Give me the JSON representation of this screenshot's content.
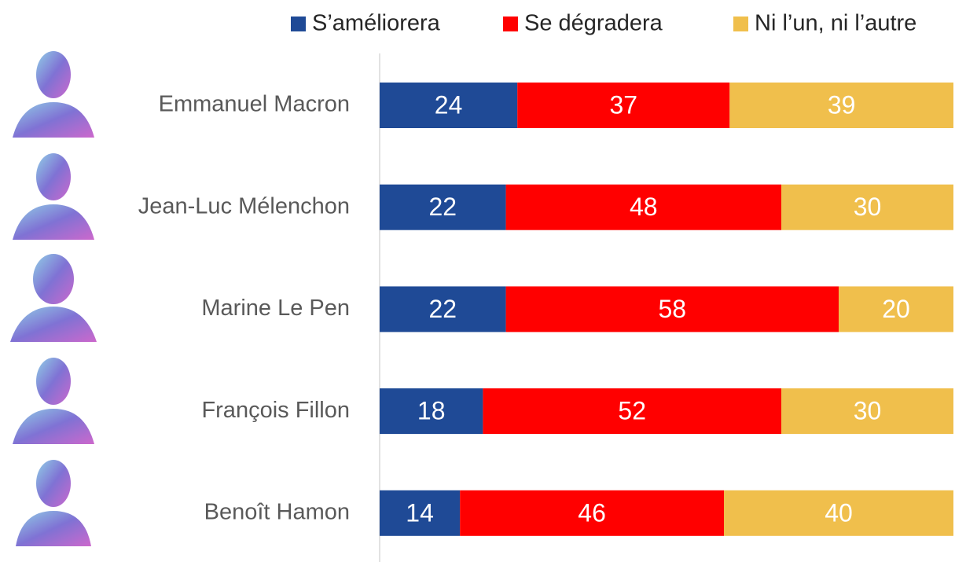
{
  "chart_data": {
    "type": "stacked-bar-horizontal",
    "categories": [
      "Emmanuel Macron",
      "Jean-Luc Mélenchon",
      "Marine Le Pen",
      "François Fillon",
      "Benoît Hamon"
    ],
    "series": [
      {
        "name": "S’améliorera",
        "color": "#1f4a96",
        "values": [
          24,
          22,
          22,
          18,
          14
        ]
      },
      {
        "name": "Se dégradera",
        "color": "#ff0000",
        "values": [
          37,
          48,
          58,
          52,
          46
        ]
      },
      {
        "name": "Ni l’un, ni l’autre",
        "color": "#f0bf4c",
        "values": [
          39,
          30,
          20,
          30,
          40
        ]
      }
    ],
    "xlim": [
      0,
      100
    ],
    "legend": "top"
  }
}
